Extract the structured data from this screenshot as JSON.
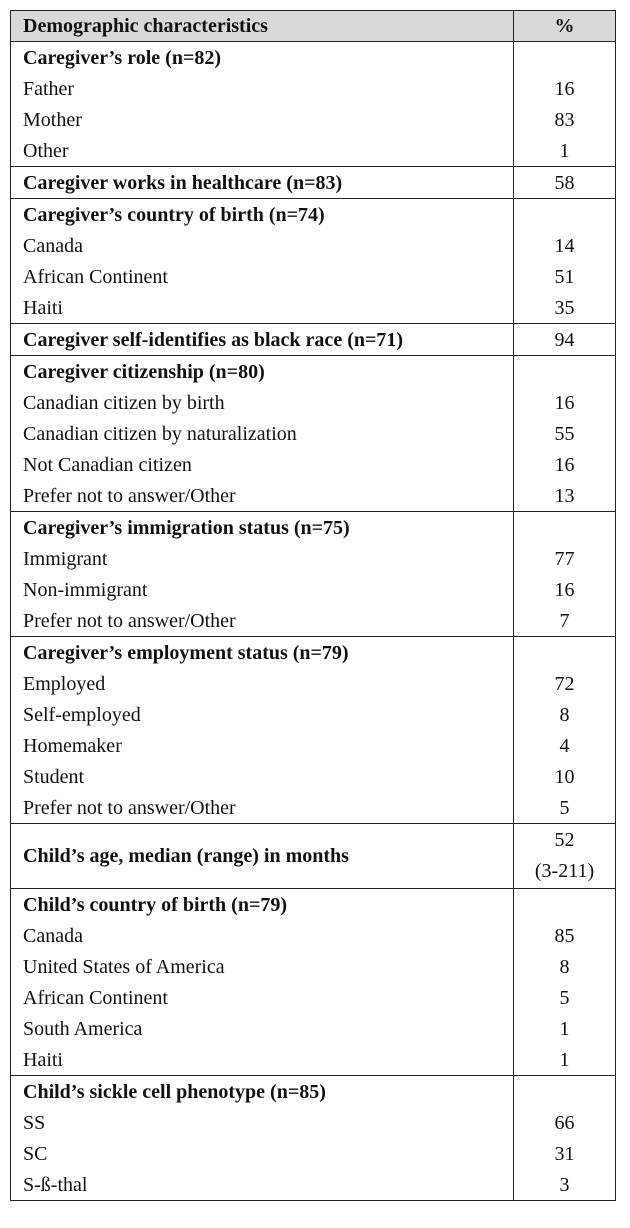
{
  "table": {
    "header": {
      "label": "Demographic characteristics",
      "value": "%"
    },
    "groups": [
      {
        "title": "Caregiver’s role (n=82)",
        "rows": [
          {
            "label": "Father",
            "value": "16"
          },
          {
            "label": "Mother",
            "value": "83"
          },
          {
            "label": "Other",
            "value": "1"
          }
        ]
      },
      {
        "title": "Caregiver works in healthcare (n=83)",
        "value": "58",
        "rows": []
      },
      {
        "title": "Caregiver’s country of birth (n=74)",
        "rows": [
          {
            "label": "Canada",
            "value": "14"
          },
          {
            "label": "African Continent",
            "value": "51"
          },
          {
            "label": "Haiti",
            "value": "35"
          }
        ]
      },
      {
        "title": "Caregiver self-identifies as black race (n=71)",
        "value": "94",
        "rows": []
      },
      {
        "title": "Caregiver citizenship (n=80)",
        "rows": [
          {
            "label": "Canadian citizen by birth",
            "value": "16"
          },
          {
            "label": "Canadian citizen by naturalization",
            "value": "55"
          },
          {
            "label": "Not Canadian citizen",
            "value": "16"
          },
          {
            "label": "Prefer not to answer/Other",
            "value": "13"
          }
        ]
      },
      {
        "title": "Caregiver’s immigration status (n=75)",
        "rows": [
          {
            "label": "Immigrant",
            "value": "77"
          },
          {
            "label": "Non-immigrant",
            "value": "16"
          },
          {
            "label": "Prefer not to answer/Other",
            "value": "7"
          }
        ]
      },
      {
        "title": "Caregiver’s employment status (n=79)",
        "rows": [
          {
            "label": "Employed",
            "value": "72"
          },
          {
            "label": "Self-employed",
            "value": "8"
          },
          {
            "label": "Homemaker",
            "value": "4"
          },
          {
            "label": "Student",
            "value": "10"
          },
          {
            "label": "Prefer not to answer/Other",
            "value": "5"
          }
        ]
      },
      {
        "title": "Child’s age, median (range) in months",
        "value": "52",
        "value_line2": "(3-211)",
        "rows": []
      },
      {
        "title": "Child’s country of birth (n=79)",
        "rows": [
          {
            "label": "Canada",
            "value": "85"
          },
          {
            "label": "United States of America",
            "value": "8"
          },
          {
            "label": "African Continent",
            "value": "5"
          },
          {
            "label": "South America",
            "value": "1"
          },
          {
            "label": "Haiti",
            "value": "1"
          }
        ]
      },
      {
        "title": "Child’s sickle cell phenotype (n=85)",
        "rows": [
          {
            "label": "SS",
            "value": "66"
          },
          {
            "label": "SC",
            "value": "31"
          },
          {
            "label": "S-ß-thal",
            "value": "3"
          }
        ]
      }
    ]
  }
}
